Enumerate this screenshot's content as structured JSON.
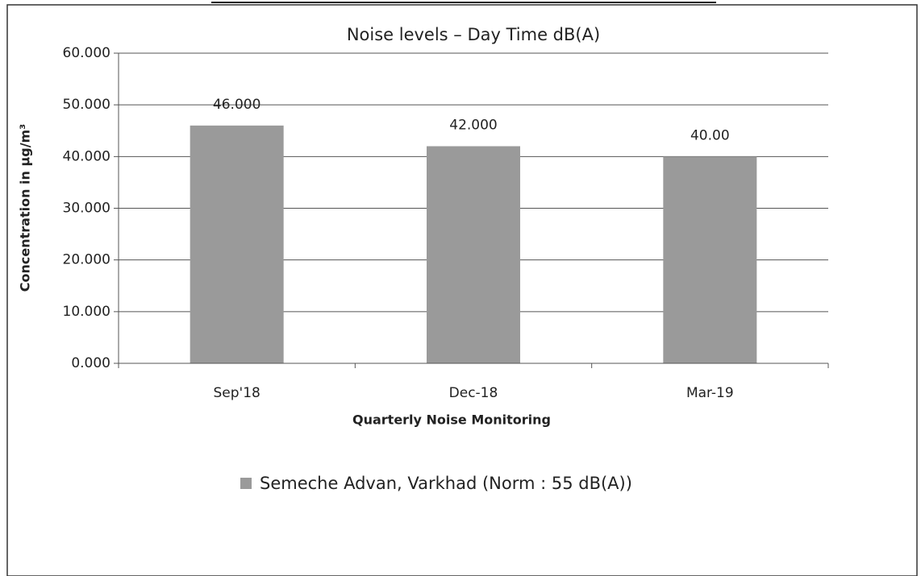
{
  "chart_data": {
    "type": "bar",
    "title": "Noise levels – Day Time dB(A)",
    "x_label": "Quarterly Noise  Monitoring",
    "y_label": "Concentration in µg/m³",
    "categories": [
      "Sep'18",
      "Dec-18",
      "Mar-19"
    ],
    "series": [
      {
        "name": "Semeche Advan, Varkhad (Norm : 55 dB(A))",
        "color": "#9a9a9a",
        "values": [
          46,
          42,
          40
        ],
        "value_labels": [
          "46.000",
          "42.000",
          "40.00"
        ]
      }
    ],
    "ylim": [
      0,
      60
    ],
    "yticks": [
      {
        "value": 0,
        "label": "0.000"
      },
      {
        "value": 10,
        "label": "10.000"
      },
      {
        "value": 20,
        "label": "20.000"
      },
      {
        "value": 30,
        "label": "30.000"
      },
      {
        "value": 40,
        "label": "40.000"
      },
      {
        "value": 50,
        "label": "50.000"
      },
      {
        "value": 60,
        "label": "60.000"
      }
    ],
    "grid": true,
    "legend": "bottom"
  }
}
